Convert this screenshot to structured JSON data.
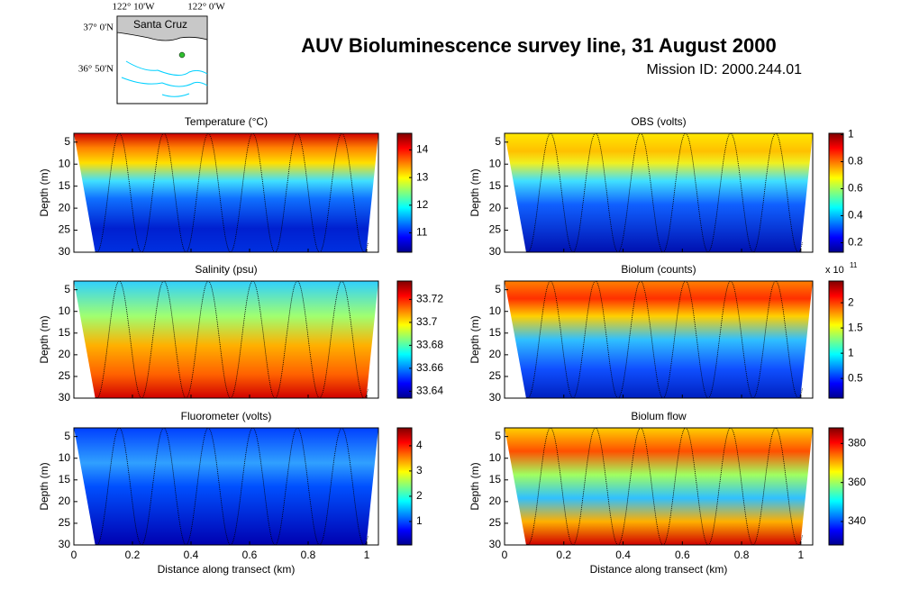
{
  "title": "AUV Bioluminescence survey line, 31 August 2000",
  "subtitle": "Mission ID: 2000.244.01",
  "map": {
    "place": "Santa Cruz",
    "xticks": [
      {
        "value": -122.1667,
        "label": "122° 10'W"
      },
      {
        "value": -122,
        "label": "122° 0'W"
      }
    ],
    "yticks": [
      {
        "value": 37,
        "label": "37° 0'N"
      },
      {
        "value": 36.8333,
        "label": "36° 50'N"
      }
    ]
  },
  "chart_data": [
    {
      "type": "heatmap",
      "title": "Temperature (°C)",
      "ylabel": "Depth (m)",
      "xlim": [
        0,
        1.04
      ],
      "xticks": [
        0,
        0.2,
        0.4,
        0.6,
        0.8,
        1
      ],
      "xtick_labels": false,
      "ylim": [
        3,
        30
      ],
      "yticks": [
        5,
        10,
        15,
        20,
        25,
        30
      ],
      "colormap": "jet",
      "clim": [
        10.3,
        14.6
      ],
      "cticks": [
        11,
        12,
        13,
        14
      ]
    },
    {
      "type": "heatmap",
      "title": "OBS (volts)",
      "ylabel": "Depth (m)",
      "xlim": [
        0,
        1.04
      ],
      "xticks": [
        0,
        0.2,
        0.4,
        0.6,
        0.8,
        1
      ],
      "xtick_labels": false,
      "ylim": [
        3,
        30
      ],
      "yticks": [
        5,
        10,
        15,
        20,
        25,
        30
      ],
      "colormap": "jet",
      "clim": [
        0.13,
        1.01
      ],
      "cticks": [
        0.2,
        0.4,
        0.6,
        0.8,
        1
      ]
    },
    {
      "type": "heatmap",
      "title": "Salinity (psu)",
      "ylabel": "Depth (m)",
      "xlim": [
        0,
        1.04
      ],
      "xticks": [
        0,
        0.2,
        0.4,
        0.6,
        0.8,
        1
      ],
      "xtick_labels": false,
      "ylim": [
        3,
        30
      ],
      "yticks": [
        5,
        10,
        15,
        20,
        25,
        30
      ],
      "colormap": "jet",
      "clim": [
        33.634,
        33.736
      ],
      "cticks": [
        33.64,
        33.66,
        33.68,
        33.7,
        33.72
      ]
    },
    {
      "type": "heatmap",
      "title": "Biolum (counts)",
      "ylabel": "Depth (m)",
      "xlim": [
        0,
        1.04
      ],
      "xticks": [
        0,
        0.2,
        0.4,
        0.6,
        0.8,
        1
      ],
      "xtick_labels": false,
      "ylim": [
        3,
        30
      ],
      "yticks": [
        5,
        10,
        15,
        20,
        25,
        30
      ],
      "colormap": "jet",
      "clim": [
        0.11,
        2.43
      ],
      "cticks": [
        0.5,
        1,
        1.5,
        2
      ],
      "scale_label": "x 10",
      "scale_exponent": 11
    },
    {
      "type": "heatmap",
      "title": "Fluorometer (volts)",
      "ylabel": "Depth (m)",
      "xlabel": "Distance along transect (km)",
      "xlim": [
        0,
        1.04
      ],
      "xticks": [
        0,
        0.2,
        0.4,
        0.6,
        0.8,
        1
      ],
      "xtick_labels": true,
      "ylim": [
        3,
        30
      ],
      "yticks": [
        5,
        10,
        15,
        20,
        25,
        30
      ],
      "colormap": "jet",
      "clim": [
        0.07,
        4.71
      ],
      "cticks": [
        1,
        2,
        3,
        4
      ]
    },
    {
      "type": "heatmap",
      "title": "Biolum flow",
      "ylabel": "Depth (m)",
      "xlabel": "Distance along transect (km)",
      "xlim": [
        0,
        1.04
      ],
      "xticks": [
        0,
        0.2,
        0.4,
        0.6,
        0.8,
        1
      ],
      "xtick_labels": true,
      "ylim": [
        3,
        30
      ],
      "yticks": [
        5,
        10,
        15,
        20,
        25,
        30
      ],
      "colormap": "jet",
      "clim": [
        328,
        388
      ],
      "cticks": [
        340,
        360,
        380
      ]
    }
  ]
}
